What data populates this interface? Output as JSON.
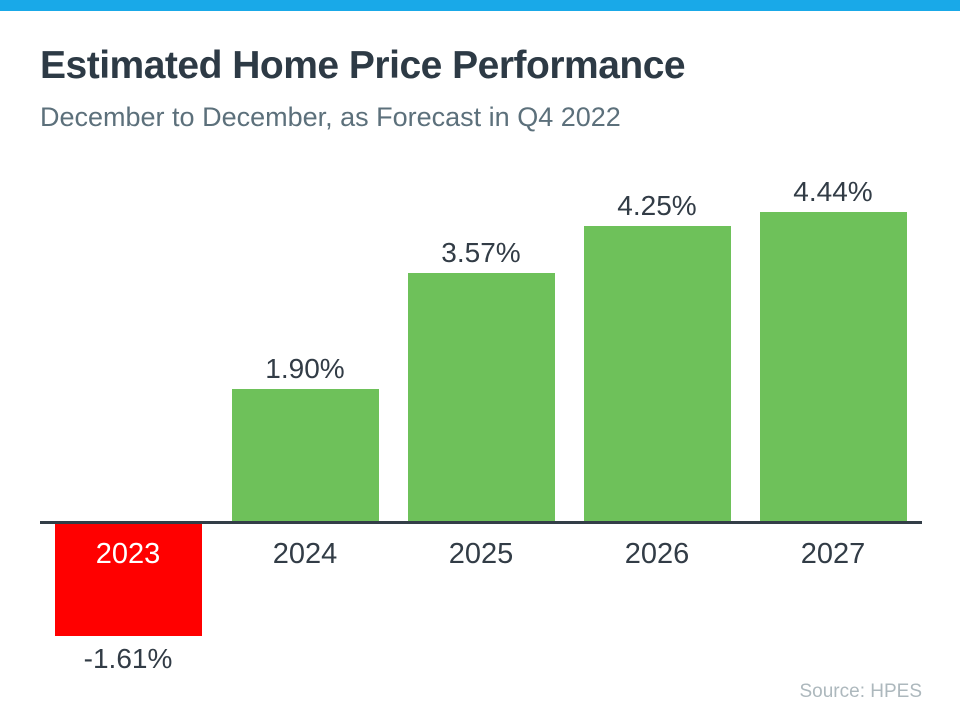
{
  "page": {
    "top_bar_color": "#19a9e8"
  },
  "header": {
    "title": "Estimated Home Price Performance",
    "subtitle": "December to December, as Forecast in Q4 2022"
  },
  "chart_data": {
    "type": "bar",
    "title": "Estimated Home Price Performance",
    "subtitle": "December to December, as Forecast in Q4 2022",
    "categories": [
      "2023",
      "2024",
      "2025",
      "2026",
      "2027"
    ],
    "values": [
      -1.61,
      1.9,
      3.57,
      4.25,
      4.44
    ],
    "value_labels": [
      "-1.61%",
      "1.90%",
      "3.57%",
      "4.25%",
      "4.44%"
    ],
    "xlabel": "",
    "ylabel": "",
    "ylim": [
      -2,
      5
    ],
    "grid": false,
    "legend": false,
    "positive_color": "#6ec15a",
    "negative_color": "#ff0000",
    "axis_color": "#333e47",
    "label_color": "#323c46",
    "negative_category_label_color": "#ffffff"
  },
  "footer": {
    "source": "Source: HPES"
  }
}
